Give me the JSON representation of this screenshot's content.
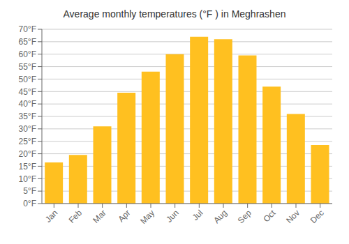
{
  "chart_data": {
    "type": "bar",
    "title": "Average monthly temperatures (°F ) in Meghrashen",
    "categories": [
      "Jan",
      "Feb",
      "Mar",
      "Apr",
      "May",
      "Jun",
      "Jul",
      "Aug",
      "Sep",
      "Oct",
      "Nov",
      "Dec"
    ],
    "values": [
      16.5,
      19.5,
      31.0,
      44.5,
      53.0,
      60.0,
      67.0,
      66.0,
      59.5,
      47.0,
      36.0,
      23.5
    ],
    "color": "#FFC020",
    "ylim": [
      0,
      70
    ],
    "yticks": [
      {
        "value": 0,
        "label": "0°F"
      },
      {
        "value": 5,
        "label": "5°F"
      },
      {
        "value": 10,
        "label": "10°F"
      },
      {
        "value": 15,
        "label": "15°F"
      },
      {
        "value": 20,
        "label": "20°F"
      },
      {
        "value": 25,
        "label": "25°F"
      },
      {
        "value": 30,
        "label": "30°F"
      },
      {
        "value": 35,
        "label": "35°F"
      },
      {
        "value": 40,
        "label": "40°F"
      },
      {
        "value": 45,
        "label": "45°F"
      },
      {
        "value": 50,
        "label": "50°F"
      },
      {
        "value": 55,
        "label": "55°F"
      },
      {
        "value": 60,
        "label": "60°F"
      },
      {
        "value": 65,
        "label": "65°F"
      },
      {
        "value": 70,
        "label": "70°F"
      }
    ],
    "grid": true
  }
}
